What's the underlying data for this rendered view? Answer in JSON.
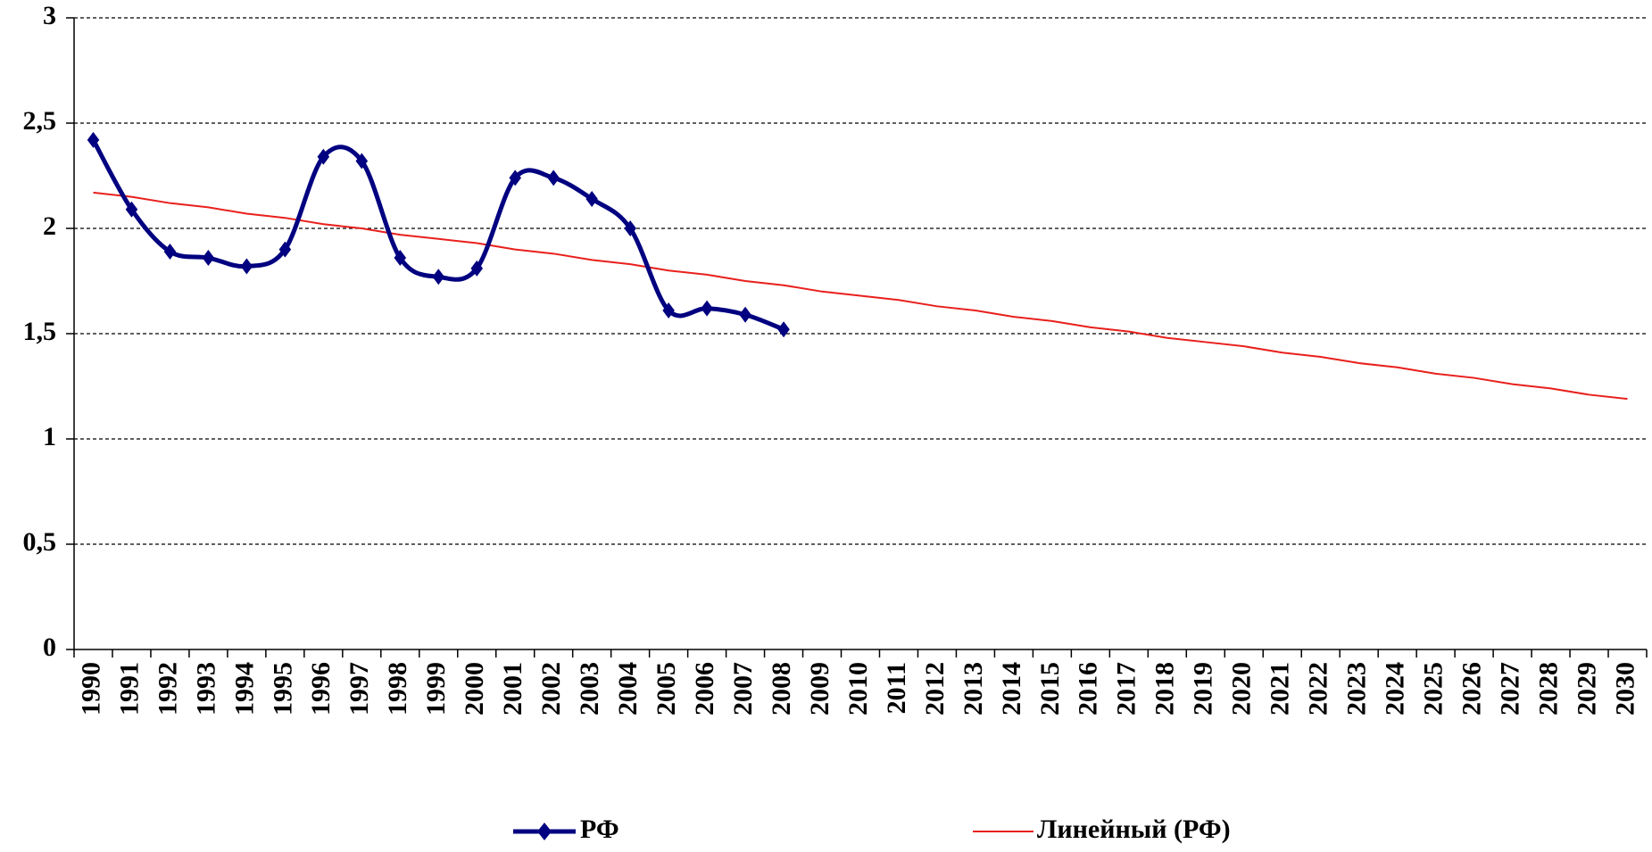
{
  "chart_data": {
    "type": "line",
    "categories": [
      "1990",
      "1991",
      "1992",
      "1993",
      "1994",
      "1995",
      "1996",
      "1997",
      "1998",
      "1999",
      "2000",
      "2001",
      "2002",
      "2003",
      "2004",
      "2005",
      "2006",
      "2007",
      "2008",
      "2009",
      "2010",
      "2011",
      "2012",
      "2013",
      "2014",
      "2015",
      "2016",
      "2017",
      "2018",
      "2019",
      "2020",
      "2021",
      "2022",
      "2023",
      "2024",
      "2025",
      "2026",
      "2027",
      "2028",
      "2029",
      "2030"
    ],
    "series": [
      {
        "name": "РФ",
        "color": "#000080",
        "marker": "diamond",
        "smooth": true,
        "values": [
          2.42,
          2.09,
          1.89,
          1.86,
          1.82,
          1.9,
          2.34,
          2.32,
          1.86,
          1.77,
          1.81,
          2.24,
          2.24,
          2.14,
          2.0,
          1.61,
          1.62,
          1.59,
          1.52,
          null,
          null,
          null,
          null,
          null,
          null,
          null,
          null,
          null,
          null,
          null,
          null,
          null,
          null,
          null,
          null,
          null,
          null,
          null,
          null,
          null,
          null
        ]
      },
      {
        "name": "Линейный (РФ)",
        "color": "#e8201c",
        "values": [
          2.17,
          2.15,
          2.12,
          2.1,
          2.07,
          2.05,
          2.02,
          2.0,
          1.97,
          1.95,
          1.93,
          1.9,
          1.88,
          1.85,
          1.83,
          1.8,
          1.78,
          1.75,
          1.73,
          1.7,
          1.68,
          1.66,
          1.63,
          1.61,
          1.58,
          1.56,
          1.53,
          1.51,
          1.48,
          1.46,
          1.44,
          1.41,
          1.39,
          1.36,
          1.34,
          1.31,
          1.29,
          1.26,
          1.24,
          1.21,
          1.19
        ]
      }
    ],
    "ylim": [
      0,
      3
    ],
    "yticks": [
      0,
      {
        "value": 0.5,
        "label": "0,5"
      },
      1,
      {
        "value": 1.5,
        "label": "1,5"
      },
      2,
      {
        "value": 2.5,
        "label": "2,5"
      },
      3
    ],
    "grid": true,
    "legend": "bottom"
  }
}
